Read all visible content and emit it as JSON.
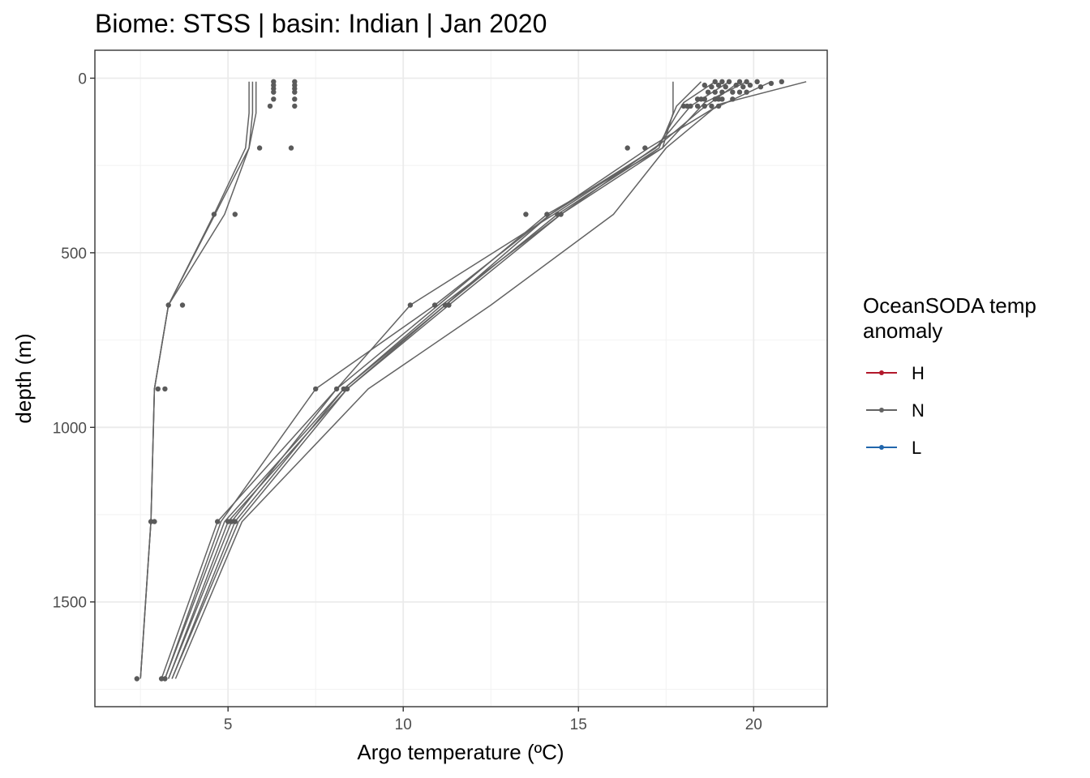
{
  "chart_data": {
    "type": "line",
    "title": "Biome: STSS | basin: Indian  | Jan 2020",
    "xlabel": "Argo temperature (ºC)",
    "ylabel": "depth (m)",
    "xlim": [
      1.2,
      22.1
    ],
    "ylim": [
      -80,
      1800
    ],
    "y_reversed": true,
    "grid": true,
    "x_ticks": [
      5,
      10,
      15,
      20
    ],
    "x_tick_labels": [
      "5",
      "10",
      "15",
      "20"
    ],
    "y_ticks": [
      0,
      500,
      1000,
      1500
    ],
    "y_tick_labels": [
      "0",
      "500",
      "1000",
      "1500"
    ],
    "legend": {
      "title": "OceanSODA temp anomaly",
      "title_lines": [
        "OceanSODA temp",
        "anomaly"
      ],
      "position": "right",
      "entries": [
        {
          "label": "H",
          "color": "#b2182b"
        },
        {
          "label": "N",
          "color": "#636363"
        },
        {
          "label": "L",
          "color": "#2166ac"
        }
      ]
    },
    "profiles": [
      {
        "group": "N",
        "points": [
          [
            5.6,
            10
          ],
          [
            5.6,
            100
          ],
          [
            5.5,
            200
          ],
          [
            4.6,
            390
          ],
          [
            3.3,
            650
          ],
          [
            2.9,
            890
          ],
          [
            2.8,
            1270
          ],
          [
            2.5,
            1720
          ]
        ]
      },
      {
        "group": "N",
        "points": [
          [
            5.7,
            10
          ],
          [
            5.7,
            100
          ],
          [
            5.6,
            200
          ],
          [
            4.9,
            390
          ],
          [
            3.3,
            650
          ],
          [
            2.9,
            890
          ],
          [
            2.8,
            1270
          ],
          [
            2.5,
            1720
          ]
        ]
      },
      {
        "group": "N",
        "points": [
          [
            5.8,
            10
          ],
          [
            5.8,
            100
          ],
          [
            5.6,
            200
          ],
          [
            3.3,
            650
          ],
          [
            2.9,
            890
          ],
          [
            2.8,
            1270
          ],
          [
            2.5,
            1720
          ]
        ]
      },
      {
        "group": "N",
        "points": [
          [
            17.7,
            10
          ],
          [
            17.7,
            100
          ],
          [
            17.4,
            200
          ],
          [
            14.1,
            390
          ],
          [
            11.0,
            650
          ],
          [
            8.1,
            890
          ],
          [
            4.7,
            1270
          ],
          [
            3.1,
            1720
          ]
        ]
      },
      {
        "group": "N",
        "points": [
          [
            18.5,
            10
          ],
          [
            17.8,
            80
          ],
          [
            17.3,
            200
          ],
          [
            14.4,
            390
          ],
          [
            11.2,
            650
          ],
          [
            8.3,
            890
          ],
          [
            4.9,
            1270
          ],
          [
            3.2,
            1720
          ]
        ]
      },
      {
        "group": "N",
        "points": [
          [
            18.9,
            10
          ],
          [
            18.0,
            70
          ],
          [
            17.3,
            190
          ],
          [
            14.5,
            390
          ],
          [
            11.3,
            650
          ],
          [
            8.4,
            890
          ],
          [
            5.0,
            1270
          ],
          [
            3.3,
            1720
          ]
        ]
      },
      {
        "group": "N",
        "points": [
          [
            19.3,
            10
          ],
          [
            18.2,
            80
          ],
          [
            17.2,
            200
          ],
          [
            14.2,
            390
          ],
          [
            10.9,
            650
          ],
          [
            7.5,
            890
          ],
          [
            4.8,
            1270
          ],
          [
            3.2,
            1720
          ]
        ]
      },
      {
        "group": "N",
        "points": [
          [
            19.6,
            10
          ],
          [
            18.5,
            90
          ],
          [
            17.2,
            200
          ],
          [
            14.3,
            390
          ],
          [
            10.2,
            650
          ],
          [
            8.1,
            890
          ],
          [
            5.1,
            1270
          ],
          [
            3.3,
            1720
          ]
        ]
      },
      {
        "group": "N",
        "points": [
          [
            19.8,
            10
          ],
          [
            18.6,
            70
          ],
          [
            17.4,
            200
          ],
          [
            14.5,
            390
          ],
          [
            11.1,
            650
          ],
          [
            8.3,
            890
          ],
          [
            5.2,
            1270
          ],
          [
            3.4,
            1720
          ]
        ]
      },
      {
        "group": "N",
        "points": [
          [
            20.5,
            10
          ],
          [
            18.8,
            90
          ],
          [
            17.0,
            200
          ],
          [
            14.2,
            390
          ],
          [
            11.2,
            650
          ],
          [
            8.4,
            890
          ],
          [
            5.3,
            1270
          ],
          [
            3.4,
            1720
          ]
        ]
      },
      {
        "group": "N",
        "points": [
          [
            21.5,
            10
          ],
          [
            19.0,
            75
          ],
          [
            17.5,
            200
          ],
          [
            16.0,
            390
          ],
          [
            12.5,
            650
          ],
          [
            9.0,
            890
          ],
          [
            5.4,
            1270
          ],
          [
            3.5,
            1720
          ]
        ]
      }
    ],
    "points": [
      [
        6.3,
        10
      ],
      [
        6.3,
        20
      ],
      [
        6.3,
        30
      ],
      [
        6.3,
        40
      ],
      [
        6.3,
        60
      ],
      [
        6.2,
        80
      ],
      [
        6.9,
        10
      ],
      [
        6.9,
        20
      ],
      [
        6.9,
        30
      ],
      [
        6.9,
        40
      ],
      [
        6.9,
        60
      ],
      [
        6.9,
        80
      ],
      [
        5.9,
        200
      ],
      [
        6.8,
        200
      ],
      [
        4.6,
        390
      ],
      [
        5.2,
        390
      ],
      [
        3.3,
        650
      ],
      [
        3.7,
        650
      ],
      [
        3.0,
        890
      ],
      [
        3.2,
        890
      ],
      [
        2.8,
        1270
      ],
      [
        2.9,
        1270
      ],
      [
        2.4,
        1720
      ],
      [
        3.1,
        1720
      ],
      [
        3.2,
        1720
      ],
      [
        16.4,
        200
      ],
      [
        16.9,
        200
      ],
      [
        13.5,
        390
      ],
      [
        14.1,
        390
      ],
      [
        14.4,
        390
      ],
      [
        14.5,
        390
      ],
      [
        10.2,
        650
      ],
      [
        10.9,
        650
      ],
      [
        11.2,
        650
      ],
      [
        11.3,
        650
      ],
      [
        7.5,
        890
      ],
      [
        8.1,
        890
      ],
      [
        8.3,
        890
      ],
      [
        8.4,
        890
      ],
      [
        4.7,
        1270
      ],
      [
        5.0,
        1270
      ],
      [
        5.1,
        1270
      ],
      [
        5.2,
        1270
      ],
      [
        18.9,
        10
      ],
      [
        19.1,
        10
      ],
      [
        19.3,
        10
      ],
      [
        19.6,
        10
      ],
      [
        19.8,
        10
      ],
      [
        20.1,
        10
      ],
      [
        20.8,
        10
      ],
      [
        20.5,
        15
      ],
      [
        20.2,
        25
      ],
      [
        18.6,
        20
      ],
      [
        18.8,
        25
      ],
      [
        19.0,
        20
      ],
      [
        19.2,
        25
      ],
      [
        19.5,
        20
      ],
      [
        19.7,
        25
      ],
      [
        19.9,
        20
      ],
      [
        18.7,
        40
      ],
      [
        18.9,
        40
      ],
      [
        19.1,
        40
      ],
      [
        19.4,
        40
      ],
      [
        19.6,
        40
      ],
      [
        19.8,
        40
      ],
      [
        18.4,
        60
      ],
      [
        18.5,
        60
      ],
      [
        18.6,
        60
      ],
      [
        18.9,
        60
      ],
      [
        19.0,
        60
      ],
      [
        19.1,
        60
      ],
      [
        19.4,
        60
      ],
      [
        18.0,
        80
      ],
      [
        18.1,
        80
      ],
      [
        18.2,
        80
      ],
      [
        18.4,
        80
      ],
      [
        18.6,
        80
      ],
      [
        18.8,
        80
      ],
      [
        19.0,
        80
      ]
    ],
    "line_color": "#636363",
    "point_color": "#5a5a5a"
  }
}
